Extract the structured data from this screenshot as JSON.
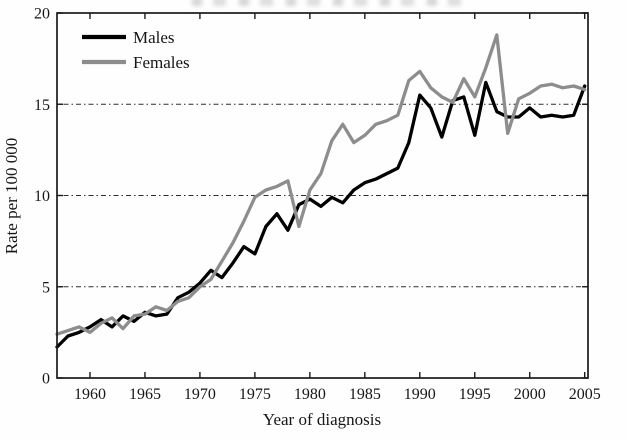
{
  "figure": {
    "y_axis_label": "Rate per 100 000",
    "x_axis_label": "Year of diagnosis",
    "legend": {
      "males_label": "Males",
      "females_label": "Females"
    },
    "colors": {
      "males_line": "#000000",
      "females_line": "#8d8d8d",
      "axis": "#1a1a1a",
      "grid": "#2b2b2b",
      "background": "#fefefe"
    }
  },
  "chart_data": {
    "type": "line",
    "title": "",
    "xlabel": "Year of diagnosis",
    "ylabel": "Rate per 100 000",
    "legend_position": "top-left",
    "grid": "horizontal dash-dot lines at y = 5, 10, 15",
    "xlim": [
      1957,
      2005.3
    ],
    "ylim": [
      0,
      20
    ],
    "xticks": [
      1960,
      1965,
      1970,
      1975,
      1980,
      1985,
      1990,
      1995,
      2000,
      2005
    ],
    "yticks": [
      0,
      5,
      10,
      15,
      20
    ],
    "gridlines_y": [
      5,
      10,
      15
    ],
    "x": [
      1957,
      1958,
      1959,
      1960,
      1961,
      1962,
      1963,
      1964,
      1965,
      1966,
      1967,
      1968,
      1969,
      1970,
      1971,
      1972,
      1973,
      1974,
      1975,
      1976,
      1977,
      1978,
      1979,
      1980,
      1981,
      1982,
      1983,
      1984,
      1985,
      1986,
      1987,
      1988,
      1989,
      1990,
      1991,
      1992,
      1993,
      1994,
      1995,
      1996,
      1997,
      1998,
      1999,
      2000,
      2001,
      2002,
      2003,
      2004,
      2005
    ],
    "series": [
      {
        "name": "Males",
        "color": "#000000",
        "values": [
          1.7,
          2.3,
          2.5,
          2.8,
          3.2,
          2.8,
          3.4,
          3.1,
          3.6,
          3.4,
          3.5,
          4.4,
          4.7,
          5.2,
          5.9,
          5.5,
          6.3,
          7.2,
          6.8,
          8.3,
          9.0,
          8.1,
          9.5,
          9.8,
          9.4,
          9.9,
          9.6,
          10.3,
          10.7,
          10.9,
          11.2,
          11.5,
          12.9,
          15.5,
          14.8,
          13.2,
          15.2,
          15.4,
          13.3,
          16.2,
          14.6,
          14.3,
          14.3,
          14.8,
          14.3,
          14.4,
          14.3,
          14.4,
          16.0
        ]
      },
      {
        "name": "Females",
        "color": "#8d8d8d",
        "values": [
          2.4,
          2.6,
          2.8,
          2.5,
          3.0,
          3.3,
          2.7,
          3.4,
          3.5,
          3.9,
          3.7,
          4.2,
          4.4,
          5.0,
          5.4,
          6.4,
          7.4,
          8.6,
          9.9,
          10.3,
          10.5,
          10.8,
          8.3,
          10.3,
          11.2,
          13.0,
          13.9,
          12.9,
          13.3,
          13.9,
          14.1,
          14.4,
          16.3,
          16.8,
          15.9,
          15.4,
          15.1,
          16.4,
          15.4,
          17.0,
          18.8,
          13.4,
          15.3,
          15.6,
          16.0,
          16.1,
          15.9,
          16.0,
          15.8
        ]
      }
    ]
  }
}
